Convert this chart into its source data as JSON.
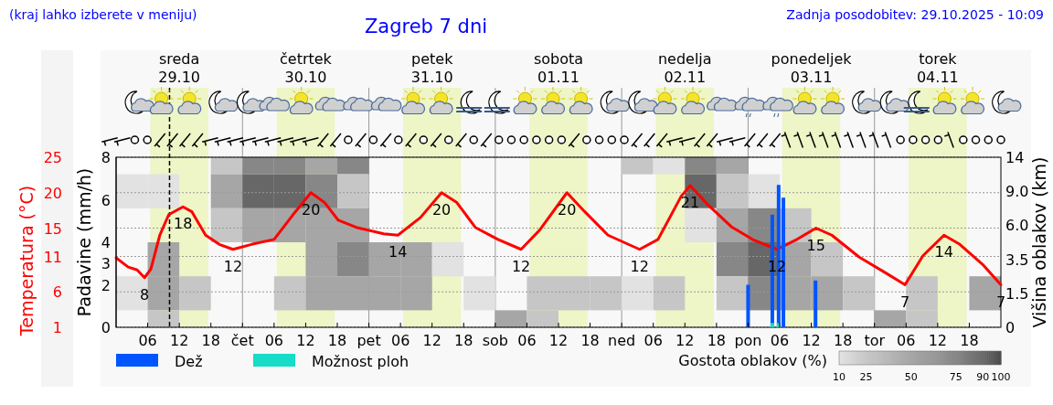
{
  "chart_data": [
    {
      "type": "line",
      "title": "Zagreb 7 dni",
      "subtitle": "(kraj lahko izberete v meniju)",
      "annotations": [
        "Zadnja posodobitev: 29.10.2025 - 10:09"
      ],
      "xlim": [
        "2025-10-29T00:00",
        "2025-11-05T00:00"
      ],
      "xticks": [
        {
          "value": "2025-10-29T06:00",
          "label": "06"
        },
        {
          "value": "2025-10-29T12:00",
          "label": "12"
        },
        {
          "value": "2025-10-29T18:00",
          "label": "18"
        },
        {
          "value": "2025-10-30T00:00",
          "label": "čet"
        },
        {
          "value": "2025-10-30T06:00",
          "label": "06"
        },
        {
          "value": "2025-10-30T12:00",
          "label": "12"
        },
        {
          "value": "2025-10-30T18:00",
          "label": "18"
        },
        {
          "value": "2025-10-31T00:00",
          "label": "pet"
        },
        {
          "value": "2025-10-31T06:00",
          "label": "06"
        },
        {
          "value": "2025-10-31T12:00",
          "label": "12"
        },
        {
          "value": "2025-10-31T18:00",
          "label": "18"
        },
        {
          "value": "2025-11-01T00:00",
          "label": "sob"
        },
        {
          "value": "2025-11-01T06:00",
          "label": "06"
        },
        {
          "value": "2025-11-01T12:00",
          "label": "12"
        },
        {
          "value": "2025-11-01T18:00",
          "label": "18"
        },
        {
          "value": "2025-11-02T00:00",
          "label": "ned"
        },
        {
          "value": "2025-11-02T06:00",
          "label": "06"
        },
        {
          "value": "2025-11-02T12:00",
          "label": "12"
        },
        {
          "value": "2025-11-02T18:00",
          "label": "18"
        },
        {
          "value": "2025-11-03T00:00",
          "label": "pon"
        },
        {
          "value": "2025-11-03T06:00",
          "label": "06"
        },
        {
          "value": "2025-11-03T12:00",
          "label": "12"
        },
        {
          "value": "2025-11-03T18:00",
          "label": "18"
        },
        {
          "value": "2025-11-04T00:00",
          "label": "tor"
        },
        {
          "value": "2025-11-04T06:00",
          "label": "06"
        },
        {
          "value": "2025-11-04T12:00",
          "label": "12"
        },
        {
          "value": "2025-11-04T18:00",
          "label": "18"
        }
      ],
      "x2lim": [
        "2025-10-29T00:00",
        "2025-11-05T00:00"
      ],
      "x2ticks": [
        {
          "value": "2025-10-29T12:00",
          "label": "sreda 29.10"
        },
        {
          "value": "2025-10-30T12:00",
          "label": "četrtek 30.10"
        },
        {
          "value": "2025-10-31T12:00",
          "label": "petek 31.10"
        },
        {
          "value": "2025-11-01T12:00",
          "label": "sobota 01.11"
        },
        {
          "value": "2025-11-02T12:00",
          "label": "nedelja 02.11"
        },
        {
          "value": "2025-11-03T12:00",
          "label": "ponedeljek 03.11"
        },
        {
          "value": "2025-11-04T12:00",
          "label": "torek 04.11"
        }
      ],
      "ylabel": "Temperatura (°C)",
      "ylim": [
        1,
        25
      ],
      "yticks": [
        1,
        6,
        11,
        15,
        20,
        25
      ],
      "y2label": "Padavine (mm/h)",
      "y2lim": [
        0,
        8
      ],
      "y2ticks": [
        0,
        2,
        3,
        4,
        6,
        8
      ],
      "grid": true,
      "legend": "bottom",
      "bands": [
        {
          "axis": "x",
          "from": "2025-10-29T06:30",
          "to": "2025-10-29T17:30",
          "color": "#eef5c6"
        },
        {
          "axis": "x",
          "from": "2025-10-30T06:30",
          "to": "2025-10-30T17:30",
          "color": "#eef5c6"
        },
        {
          "axis": "x",
          "from": "2025-10-31T06:30",
          "to": "2025-10-31T17:30",
          "color": "#eef5c6"
        },
        {
          "axis": "x",
          "from": "2025-11-01T06:30",
          "to": "2025-11-01T17:30",
          "color": "#eef5c6"
        },
        {
          "axis": "x",
          "from": "2025-11-02T06:30",
          "to": "2025-11-02T17:30",
          "color": "#eef5c6"
        },
        {
          "axis": "x",
          "from": "2025-11-03T06:30",
          "to": "2025-11-03T17:30",
          "color": "#eef5c6"
        },
        {
          "axis": "x",
          "from": "2025-11-04T06:30",
          "to": "2025-11-04T17:30",
          "color": "#eef5c6"
        }
      ],
      "ref_lines": [
        {
          "axis": "x",
          "value": "2025-10-29T10:09",
          "color": "#000000",
          "line_style": "dashed"
        }
      ],
      "series": [
        {
          "color": "#ff0000",
          "x": [
            "2025-10-29T00:00",
            "2025-10-29T02:18",
            "2025-10-29T04:00",
            "2025-10-29T05:24",
            "2025-10-29T06:36",
            "2025-10-29T08:18",
            "2025-10-29T10:00",
            "2025-10-29T12:42",
            "2025-10-29T14:24",
            "2025-10-29T17:00",
            "2025-10-29T19:36",
            "2025-10-29T22:12",
            "2025-10-30T01:42",
            "2025-10-30T06:00",
            "2025-10-30T09:30",
            "2025-10-30T13:00",
            "2025-10-30T15:36",
            "2025-10-30T18:12",
            "2025-10-30T21:36",
            "2025-10-31T02:48",
            "2025-10-31T05:30",
            "2025-10-31T09:48",
            "2025-10-31T13:48",
            "2025-10-31T16:42",
            "2025-10-31T20:12",
            "2025-11-01T00:30",
            "2025-11-01T04:54",
            "2025-11-01T08:24",
            "2025-11-01T13:36",
            "2025-11-01T17:00",
            "2025-11-01T21:24",
            "2025-11-02T03:24",
            "2025-11-02T06:54",
            "2025-11-02T11:18",
            "2025-11-02T13:00",
            "2025-11-02T16:30",
            "2025-11-02T20:48",
            "2025-11-03T01:06",
            "2025-11-03T05:30",
            "2025-11-03T09:00",
            "2025-11-03T12:54",
            "2025-11-03T15:54",
            "2025-11-03T21:06",
            "2025-11-04T02:18",
            "2025-11-04T05:48",
            "2025-11-04T09:12",
            "2025-11-04T13:12",
            "2025-11-04T16:12",
            "2025-11-04T20:30",
            "2025-11-05T00:00"
          ],
          "values": [
            10.8,
            9.5,
            9.1,
            8,
            9.2,
            14,
            16.9,
            18,
            17.3,
            14,
            12.7,
            12,
            12.7,
            13.4,
            16.8,
            20,
            18.6,
            16.1,
            15.1,
            14.2,
            14,
            16.5,
            20,
            18.6,
            15.1,
            13.4,
            12,
            14.7,
            20,
            17.3,
            14,
            12,
            13.4,
            19.5,
            21,
            18.2,
            15.2,
            13.3,
            12,
            13.3,
            15,
            14,
            10.9,
            8.6,
            7,
            11.1,
            14,
            12.7,
            9.9,
            7
          ],
          "value_labels": [
            null,
            null,
            null,
            "8",
            null,
            null,
            null,
            "18",
            null,
            null,
            null,
            "12",
            null,
            null,
            null,
            "20",
            null,
            null,
            null,
            null,
            "14",
            null,
            "20",
            null,
            null,
            null,
            "12",
            null,
            "20",
            null,
            null,
            "12",
            null,
            null,
            "21",
            null,
            null,
            null,
            "12",
            null,
            "15",
            null,
            null,
            null,
            "7",
            null,
            "14",
            null,
            null,
            "7"
          ]
        },
        {
          "type": "bar",
          "axis": "y2",
          "name": "Dež",
          "color": "#0055ff",
          "x": [
            "2025-11-03T00:00",
            "2025-11-03T04:36",
            "2025-11-03T05:48",
            "2025-11-03T06:42",
            "2025-11-03T12:48"
          ],
          "values": [
            2,
            5.3,
            6.7,
            6.1,
            2.2
          ]
        },
        {
          "type": "bar",
          "axis": "y2",
          "name": "Možnost ploh",
          "color": "#16dcc8",
          "x": [
            "2025-11-03T04:36",
            "2025-11-03T05:48"
          ],
          "values": [
            0.2,
            0.2
          ]
        }
      ]
    },
    {
      "type": "heatmap",
      "clabel": "Gostota oblakov (%)",
      "cticks": [
        10,
        25,
        50,
        75,
        90,
        100
      ],
      "ylabel": "Višina oblakov (km)",
      "categories": [
        null,
        null,
        null,
        null,
        null,
        null,
        null,
        null,
        null,
        null,
        null,
        null,
        null,
        null,
        null,
        null,
        null,
        null,
        null,
        null,
        null,
        null,
        null,
        null,
        null,
        null,
        null,
        null
      ],
      "y_categories": [
        "14",
        "9.0",
        "6.0",
        "3.5",
        "1.5",
        "0"
      ],
      "cells": [
        [
          null,
          null,
          null,
          25,
          75,
          75,
          50,
          75,
          null,
          null,
          null,
          null,
          null,
          null,
          null,
          null,
          25,
          10,
          75,
          50,
          null,
          null,
          null,
          null,
          null,
          null,
          null,
          null
        ],
        [
          10,
          10,
          null,
          50,
          90,
          90,
          75,
          25,
          null,
          null,
          null,
          null,
          null,
          null,
          null,
          null,
          null,
          null,
          90,
          25,
          10,
          null,
          null,
          null,
          null,
          null,
          null,
          null
        ],
        [
          null,
          null,
          null,
          25,
          50,
          50,
          50,
          50,
          null,
          null,
          null,
          null,
          null,
          null,
          null,
          null,
          null,
          null,
          10,
          50,
          75,
          25,
          null,
          null,
          null,
          null,
          null,
          null
        ],
        [
          null,
          50,
          null,
          null,
          null,
          null,
          50,
          75,
          50,
          50,
          10,
          null,
          null,
          null,
          null,
          null,
          null,
          null,
          null,
          75,
          90,
          50,
          25,
          null,
          null,
          null,
          null,
          null
        ],
        [
          10,
          50,
          25,
          null,
          null,
          25,
          50,
          50,
          50,
          50,
          null,
          10,
          null,
          25,
          25,
          25,
          10,
          25,
          null,
          25,
          75,
          50,
          50,
          25,
          null,
          25,
          null,
          50
        ],
        [
          null,
          25,
          null,
          null,
          null,
          null,
          null,
          null,
          null,
          null,
          null,
          null,
          50,
          25,
          null,
          null,
          null,
          null,
          null,
          null,
          null,
          null,
          null,
          null,
          50,
          25,
          null,
          null
        ]
      ]
    }
  ]
}
